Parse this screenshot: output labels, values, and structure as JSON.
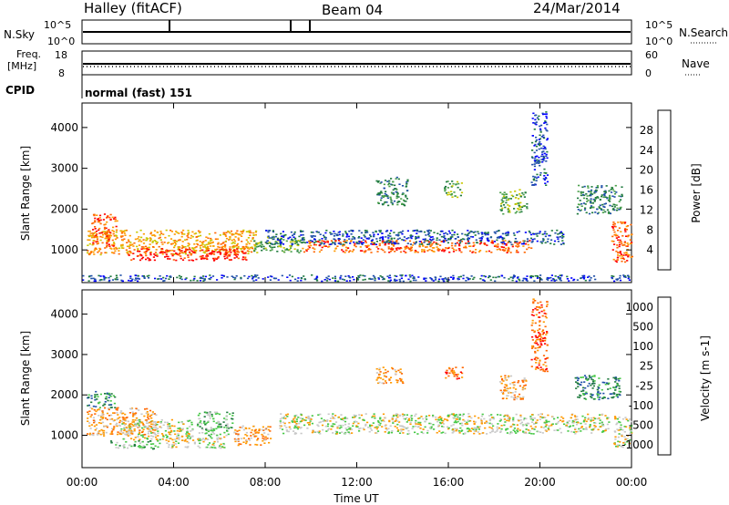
{
  "header": {
    "station": "Halley (fitACF)",
    "beam": "Beam 04",
    "date": "24/Mar/2014"
  },
  "panels": {
    "nsky_label": "N.Sky",
    "nsky_ticks": [
      "10^5",
      "10^0"
    ],
    "nsearch_label": "N.Search",
    "nsearch_ticks": [
      "10^5",
      "10^0"
    ],
    "freq_label": "Freq.",
    "freq_unit": "[MHz]",
    "freq_ticks": [
      "18",
      "8"
    ],
    "nave_label": "Nave",
    "nave_ticks": [
      "60",
      "0"
    ],
    "cpid_label": "CPID",
    "cpid_value": "normal (fast) 151"
  },
  "chart_data": [
    {
      "type": "heatmap",
      "name": "power",
      "ylabel": "Slant Range [km]",
      "xlabel": "Time UT",
      "x_ticks": [
        "00:00",
        "04:00",
        "08:00",
        "12:00",
        "16:00",
        "20:00",
        "00:00"
      ],
      "x_range_hours": [
        0,
        24
      ],
      "y_ticks": [
        1000,
        2000,
        3000,
        4000
      ],
      "ylim": [
        200,
        4600
      ],
      "colorbar": {
        "label": "Power [dB]",
        "ticks": [
          4,
          8,
          12,
          16,
          20,
          24,
          28
        ],
        "colors": [
          "#0000ff",
          "#1f4fa8",
          "#1f7a3e",
          "#4aa04a",
          "#c8c800",
          "#ff9900",
          "#ff6600",
          "#ff0000"
        ]
      },
      "blobs": [
        {
          "t0": 0.2,
          "t1": 7.6,
          "r0": 900,
          "r1": 1500,
          "level": 5
        },
        {
          "t0": 2.0,
          "t1": 7.2,
          "r0": 750,
          "r1": 1050,
          "level": 7
        },
        {
          "t0": 0.4,
          "t1": 1.5,
          "r0": 1050,
          "r1": 1900,
          "level": 6
        },
        {
          "t0": 7.4,
          "t1": 9.6,
          "r0": 950,
          "r1": 1350,
          "level": 3
        },
        {
          "t0": 9.6,
          "t1": 19.6,
          "r0": 950,
          "r1": 1250,
          "level": 6
        },
        {
          "t0": 8.0,
          "t1": 21.0,
          "r0": 1150,
          "r1": 1500,
          "level": 1
        },
        {
          "t0": 12.8,
          "t1": 14.2,
          "r0": 2100,
          "r1": 2800,
          "level": 2
        },
        {
          "t0": 15.8,
          "t1": 16.6,
          "r0": 2300,
          "r1": 2700,
          "level": 3
        },
        {
          "t0": 18.2,
          "t1": 19.4,
          "r0": 1900,
          "r1": 2500,
          "level": 3
        },
        {
          "t0": 21.6,
          "t1": 23.6,
          "r0": 1900,
          "r1": 2600,
          "level": 2
        },
        {
          "t0": 23.1,
          "t1": 24.0,
          "r0": 700,
          "r1": 1700,
          "level": 6
        },
        {
          "t0": 19.6,
          "t1": 20.3,
          "r0": 2600,
          "r1": 4400,
          "level": 1
        },
        {
          "t0": 0.0,
          "t1": 24.0,
          "r0": 250,
          "r1": 400,
          "level": 1
        }
      ]
    },
    {
      "type": "heatmap",
      "name": "velocity",
      "ylabel": "Slant Range [km]",
      "xlabel": "Time UT",
      "x_ticks": [
        "00:00",
        "04:00",
        "08:00",
        "12:00",
        "16:00",
        "20:00",
        "00:00"
      ],
      "x_range_hours": [
        0,
        24
      ],
      "y_ticks": [
        1000,
        2000,
        3000,
        4000
      ],
      "ylim": [
        200,
        4600
      ],
      "colorbar": {
        "label": "Velocity [m s-1]",
        "ticks": [
          1000,
          500,
          100,
          25,
          -25,
          -100,
          -500,
          -1000
        ],
        "colors": [
          "#0000ff",
          "#1f4fa8",
          "#1f7a3e",
          "#46c846",
          "#c8c8c8",
          "#ff9900",
          "#ff6600",
          "#ff0000"
        ]
      },
      "blobs": [
        {
          "t0": 0.2,
          "t1": 3.2,
          "r0": 1000,
          "r1": 1700,
          "level": 5
        },
        {
          "t0": 1.6,
          "t1": 4.8,
          "r0": 900,
          "r1": 1400,
          "level": 4
        },
        {
          "t0": 1.2,
          "t1": 3.4,
          "r0": 680,
          "r1": 880,
          "level": 3
        },
        {
          "t0": 3.5,
          "t1": 6.2,
          "r0": 700,
          "r1": 1000,
          "level": 4
        },
        {
          "t0": 5.0,
          "t1": 6.6,
          "r0": 1000,
          "r1": 1600,
          "level": 3
        },
        {
          "t0": 6.6,
          "t1": 8.2,
          "r0": 750,
          "r1": 1250,
          "level": 5
        },
        {
          "t0": 8.6,
          "t1": 23.0,
          "r0": 1050,
          "r1": 1550,
          "level": 4
        },
        {
          "t0": 12.8,
          "t1": 14.0,
          "r0": 2300,
          "r1": 2700,
          "level": 5
        },
        {
          "t0": 15.8,
          "t1": 16.6,
          "r0": 2400,
          "r1": 2700,
          "level": 6
        },
        {
          "t0": 18.2,
          "t1": 19.4,
          "r0": 1900,
          "r1": 2500,
          "level": 5
        },
        {
          "t0": 21.5,
          "t1": 23.5,
          "r0": 1900,
          "r1": 2500,
          "level": 2
        },
        {
          "t0": 23.2,
          "t1": 24.0,
          "r0": 700,
          "r1": 1500,
          "level": 4
        },
        {
          "t0": 0.2,
          "t1": 1.4,
          "r0": 1700,
          "r1": 2100,
          "level": 2
        },
        {
          "t0": 19.6,
          "t1": 20.3,
          "r0": 2600,
          "r1": 4400,
          "level": 6
        }
      ]
    }
  ]
}
